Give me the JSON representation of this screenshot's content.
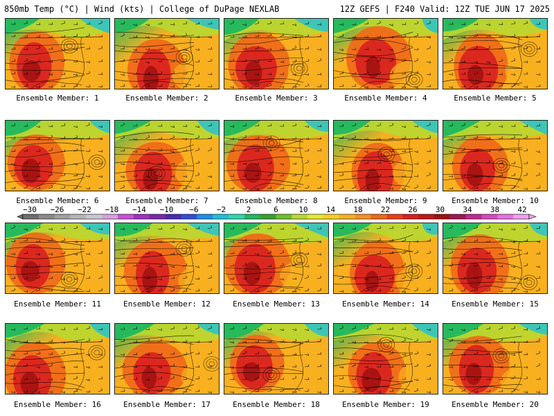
{
  "header": {
    "left": "850mb Temp (°C) | Wind (kts) | College of DuPage NEXLAB",
    "right": "12Z GEFS | F240 Valid: 12Z TUE JUN 17 2025"
  },
  "panel_label_prefix": "Ensemble Member: ",
  "members": [
    1,
    2,
    3,
    4,
    5,
    6,
    7,
    8,
    9,
    10,
    11,
    12,
    13,
    14,
    15,
    16,
    17,
    18,
    19,
    20
  ],
  "panel_labels": [
    "Ensemble Member: 1",
    "Ensemble Member: 2",
    "Ensemble Member: 3",
    "Ensemble Member: 4",
    "Ensemble Member: 5",
    "Ensemble Member: 6",
    "Ensemble Member: 7",
    "Ensemble Member: 8",
    "Ensemble Member: 9",
    "Ensemble Member: 10",
    "Ensemble Member: 11",
    "Ensemble Member: 12",
    "Ensemble Member: 13",
    "Ensemble Member: 14",
    "Ensemble Member: 15",
    "Ensemble Member: 16",
    "Ensemble Member: 17",
    "Ensemble Member: 18",
    "Ensemble Member: 19",
    "Ensemble Member: 20"
  ],
  "colorbar": {
    "ticks": [
      "−30",
      "−26",
      "−22",
      "−18",
      "−14",
      "−10",
      "−6",
      "−2",
      "2",
      "6",
      "10",
      "14",
      "18",
      "22",
      "26",
      "30",
      "34",
      "38",
      "42"
    ],
    "colors": [
      "#6e6e6e",
      "#8a8a8a",
      "#a0a0a0",
      "#b4b4b4",
      "#c8c8d2",
      "#d8a0e0",
      "#c850d8",
      "#a030c0",
      "#7a2aa8",
      "#4a2ab0",
      "#2f4fd8",
      "#1e8ee8",
      "#1ec0d8",
      "#2ad8b0",
      "#20b860",
      "#3aa030",
      "#70c02a",
      "#b8d830",
      "#e8e830",
      "#f8d020",
      "#f8b020",
      "#f89020",
      "#f06818",
      "#e84018",
      "#d82020",
      "#c01818",
      "#a01010",
      "#a01850",
      "#c02890",
      "#d848c0",
      "#e870e0",
      "#f0a0f0"
    ]
  },
  "colors": {
    "cold": "#1ec0d8",
    "cool": "#20b860",
    "mild": "#b8d830",
    "warm": "#f8b020",
    "hot": "#f06818",
    "veryhot": "#d82020",
    "extreme": "#a01010"
  }
}
